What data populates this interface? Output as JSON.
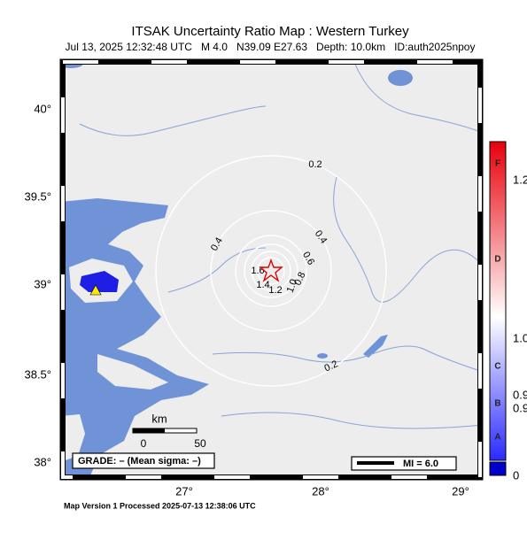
{
  "title": "ITSAK Uncertainty Ratio Map : Western Turkey",
  "subtitle": "Jul 13, 2025 12:32:48 UTC   M 4.0   N39.09 E27.63   Depth: 10.0km   ID:auth2025npoy",
  "lat_labels": [
    "40°",
    "39.5°",
    "39°",
    "38.5°",
    "38°"
  ],
  "lon_labels": [
    "27°",
    "28°",
    "29°"
  ],
  "contour_labels": [
    "0.2",
    "0.4",
    "0.4",
    "0.6",
    "0.8",
    "1.0",
    "1.2",
    "1.4",
    "1.6",
    "0.2"
  ],
  "scale_bar": {
    "unit": "km",
    "start": "0",
    "end": "50"
  },
  "grade": "GRADE: – (Mean sigma: –)",
  "legend": "MI = 6.0",
  "colorbar": {
    "grades": [
      "F",
      "D",
      "C",
      "B",
      "A"
    ],
    "values": [
      "1.2",
      "1.0",
      "0.9",
      "0.9",
      "0"
    ]
  },
  "footer": "Map Version 1 Processed 2025-07-13 12:38:06 UTC"
}
